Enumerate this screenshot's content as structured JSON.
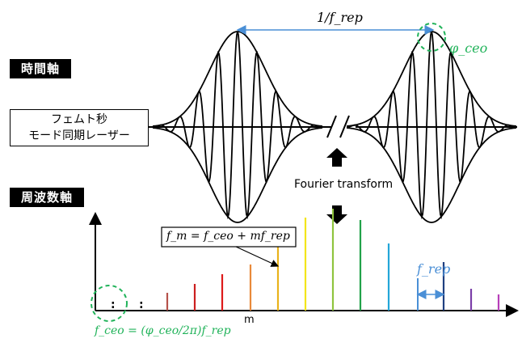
{
  "labels": {
    "time_axis": "時間軸",
    "freq_axis": "周波数軸",
    "laser_line1": "フェムト秒",
    "laser_line2": "モード同期レーザー",
    "fourier": "Fourier transform",
    "period": "1/f_rep",
    "phase": "φ_ceo",
    "comb_eq": "f_m = f_ceo + mf_rep",
    "spacing": "f_rep",
    "offset_eq": "f_ceo = (φ_ceo/2π)f_rep",
    "m_axis": "m",
    "dots": ":"
  },
  "colors": {
    "green": "#21b35a",
    "blue": "#4a8fd6",
    "comb_lines": [
      "#b5524b",
      "#cc1f1f",
      "#dd1a1a",
      "#e8893a",
      "#e9b21b",
      "#f2e51a",
      "#8fc43e",
      "#22a24a",
      "#23a6d8",
      "#1f3f80",
      "#7a3ea8",
      "#b73fb9"
    ]
  },
  "comb": {
    "relative_heights": [
      0.22,
      0.33,
      0.45,
      0.57,
      0.83,
      1.15,
      1.26,
      1.12,
      0.83,
      0.6,
      0.27,
      0.2
    ]
  },
  "icons": {
    "up_arrow": "up-arrow-icon",
    "down_arrow": "down-arrow-icon",
    "axis_break": "axis-break-icon"
  }
}
